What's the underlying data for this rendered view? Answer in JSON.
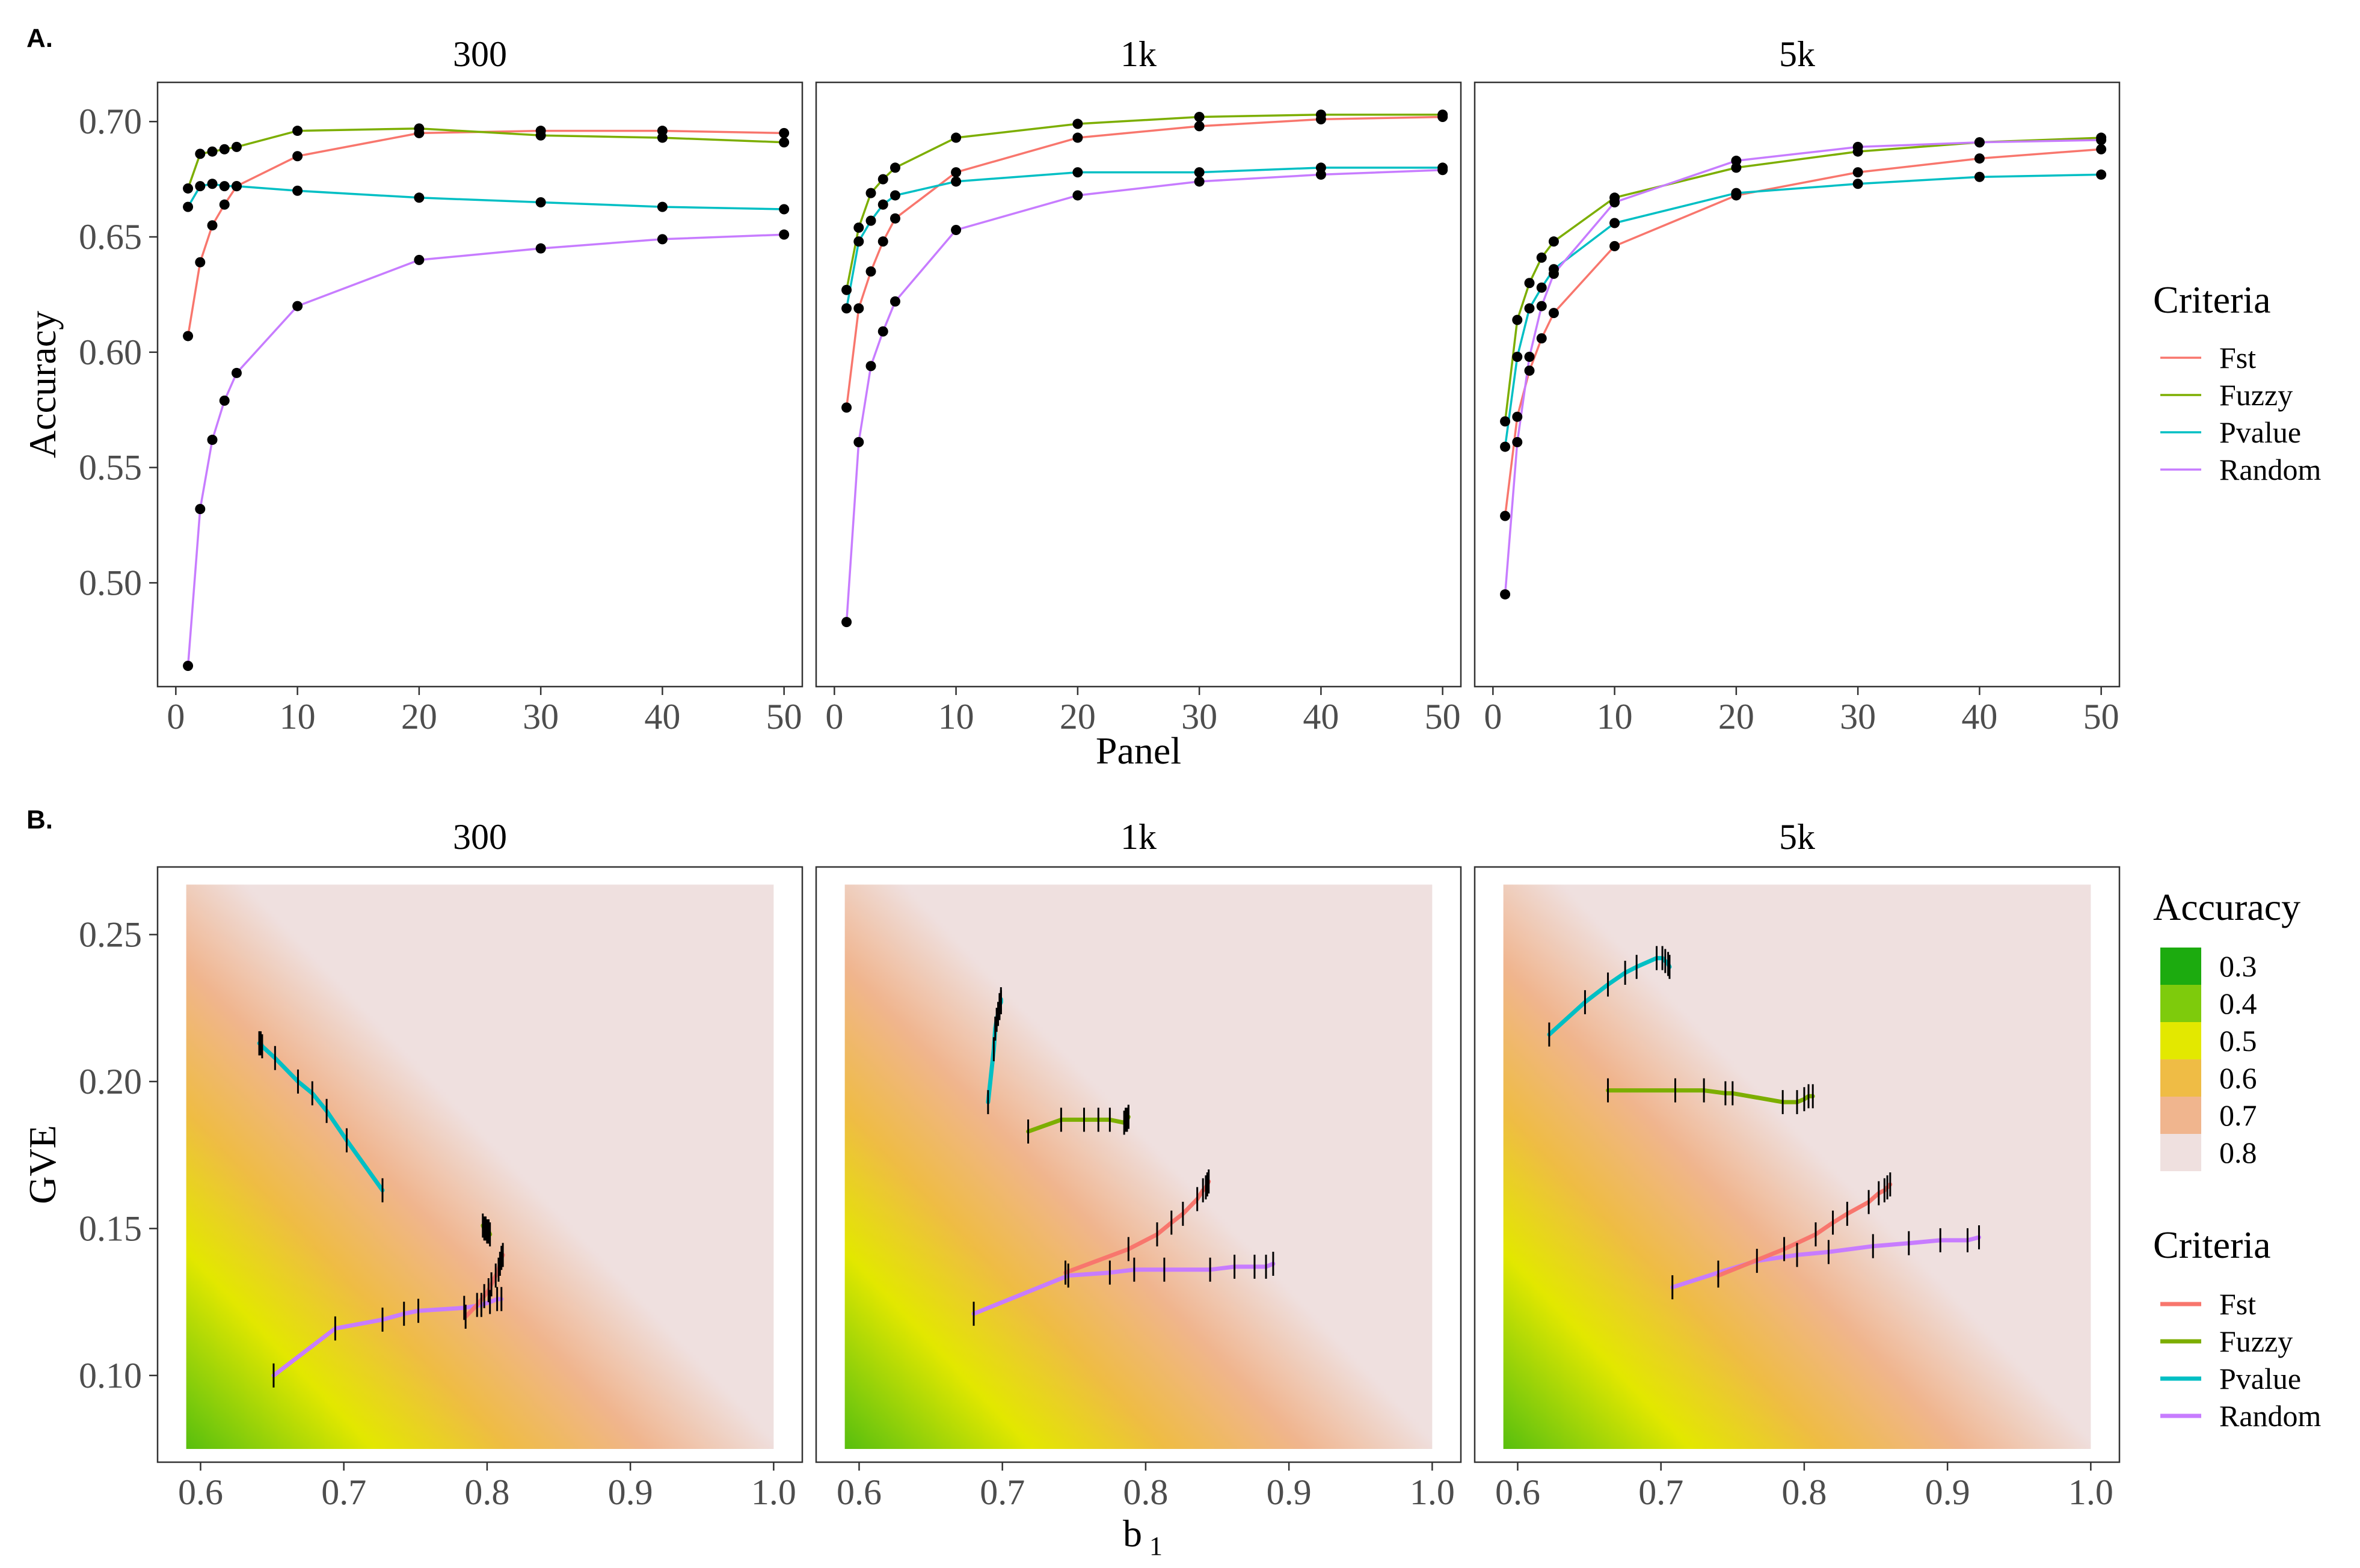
{
  "figure": {
    "panel_a_label": "A.",
    "panel_b_label": "B."
  },
  "facets": [
    "300",
    "1k",
    "5k"
  ],
  "colors": {
    "Fst": "#F8766D",
    "Fuzzy": "#7CAE00",
    "Pvalue": "#00BFC4",
    "Random": "#C77CFF"
  },
  "chart_data": [
    {
      "type": "line",
      "panel": "A.",
      "facets": [
        "300",
        "1k",
        "5k"
      ],
      "xlabel": "Panel",
      "ylabel": "Accuracy",
      "xlim": [
        -1.5,
        51.5
      ],
      "ylim": [
        0.455,
        0.717
      ],
      "xticks": [
        0,
        10,
        20,
        30,
        40,
        50
      ],
      "yticks": [
        0.5,
        0.55,
        0.6,
        0.65,
        0.7
      ],
      "grid": false,
      "legend": {
        "title": "Criteria",
        "position": "right",
        "entries": [
          "Fst",
          "Fuzzy",
          "Pvalue",
          "Random"
        ]
      },
      "x": [
        1,
        2,
        3,
        4,
        5,
        10,
        20,
        30,
        40,
        50
      ],
      "series": {
        "300": [
          {
            "name": "Fst",
            "values": [
              0.607,
              0.639,
              0.655,
              0.664,
              0.672,
              0.685,
              0.695,
              0.696,
              0.696,
              0.695
            ]
          },
          {
            "name": "Fuzzy",
            "values": [
              0.671,
              0.686,
              0.687,
              0.688,
              0.689,
              0.696,
              0.697,
              0.694,
              0.693,
              0.691
            ]
          },
          {
            "name": "Pvalue",
            "values": [
              0.663,
              0.672,
              0.673,
              0.672,
              0.672,
              0.67,
              0.667,
              0.665,
              0.663,
              0.662
            ]
          },
          {
            "name": "Random",
            "values": [
              0.464,
              0.532,
              0.562,
              0.579,
              0.591,
              0.62,
              0.64,
              0.645,
              0.649,
              0.651
            ]
          }
        ],
        "1k": [
          {
            "name": "Fst",
            "values": [
              0.576,
              0.619,
              0.635,
              0.648,
              0.658,
              0.678,
              0.693,
              0.698,
              0.701,
              0.702
            ]
          },
          {
            "name": "Fuzzy",
            "values": [
              0.627,
              0.654,
              0.669,
              0.675,
              0.68,
              0.693,
              0.699,
              0.702,
              0.703,
              0.703
            ]
          },
          {
            "name": "Pvalue",
            "values": [
              0.619,
              0.648,
              0.657,
              0.664,
              0.668,
              0.674,
              0.678,
              0.678,
              0.68,
              0.68
            ]
          },
          {
            "name": "Random",
            "values": [
              0.483,
              0.561,
              0.594,
              0.609,
              0.622,
              0.653,
              0.668,
              0.674,
              0.677,
              0.679
            ]
          }
        ],
        "5k": [
          {
            "name": "Fst",
            "values": [
              0.529,
              0.572,
              0.592,
              0.606,
              0.617,
              0.646,
              0.668,
              0.678,
              0.684,
              0.688
            ]
          },
          {
            "name": "Fuzzy",
            "values": [
              0.57,
              0.614,
              0.63,
              0.641,
              0.648,
              0.667,
              0.68,
              0.687,
              0.691,
              0.693
            ]
          },
          {
            "name": "Pvalue",
            "values": [
              0.559,
              0.598,
              0.619,
              0.628,
              0.636,
              0.656,
              0.669,
              0.673,
              0.676,
              0.677
            ]
          },
          {
            "name": "Random",
            "values": [
              0.495,
              0.561,
              0.598,
              0.62,
              0.634,
              0.665,
              0.683,
              0.689,
              0.691,
              0.692
            ]
          }
        ]
      }
    },
    {
      "type": "heatmap",
      "panel": "B.",
      "facets": [
        "300",
        "1k",
        "5k"
      ],
      "xlabel": "b",
      "xlabel_subscript": "1",
      "ylabel": "GVE",
      "xlim": [
        0.57,
        1.02
      ],
      "ylim": [
        0.0705,
        0.273
      ],
      "xticks": [
        0.6,
        0.7,
        0.8,
        0.9,
        1.0
      ],
      "yticks": [
        0.1,
        0.15,
        0.2,
        0.25
      ],
      "grid": false,
      "surface": {
        "b1_range": [
          0.59,
          1.0
        ],
        "gve_range": [
          0.075,
          0.267
        ]
      },
      "fill_legend": {
        "title": "Accuracy",
        "position": "right",
        "levels": [
          "0.3",
          "0.4",
          "0.5",
          "0.6",
          "0.7",
          "0.8"
        ],
        "colors": [
          "#1CAB0F",
          "#7ECB0C",
          "#E3E800",
          "#EFBC45",
          "#F0B58E",
          "#EFE0DF"
        ]
      },
      "line_legend": {
        "title": "Criteria",
        "position": "right",
        "entries": [
          "Fst",
          "Fuzzy",
          "Pvalue",
          "Random"
        ]
      },
      "series": {
        "300": [
          {
            "name": "Fst",
            "b1": [
              0.785,
              0.793,
              0.798,
              0.801,
              0.803,
              0.806,
              0.808,
              0.809,
              0.81,
              0.811
            ],
            "gve": [
              0.12,
              0.124,
              0.127,
              0.129,
              0.131,
              0.134,
              0.136,
              0.138,
              0.14,
              0.141
            ]
          },
          {
            "name": "Fuzzy",
            "b1": [
              0.797,
              0.798,
              0.799,
              0.8,
              0.8,
              0.801,
              0.801,
              0.801,
              0.801,
              0.802
            ],
            "gve": [
              0.151,
              0.15,
              0.15,
              0.149,
              0.149,
              0.149,
              0.149,
              0.149,
              0.149,
              0.148
            ]
          },
          {
            "name": "Pvalue",
            "b1": [
              0.727,
              0.702,
              0.688,
              0.678,
              0.668,
              0.652,
              0.643,
              0.642,
              0.641,
              0.641
            ],
            "gve": [
              0.163,
              0.18,
              0.19,
              0.196,
              0.2,
              0.208,
              0.212,
              0.213,
              0.213,
              0.213
            ]
          },
          {
            "name": "Random",
            "b1": [
              0.651,
              0.694,
              0.727,
              0.742,
              0.752,
              0.784,
              0.796,
              0.802,
              0.807,
              0.81
            ],
            "gve": [
              0.1,
              0.116,
              0.119,
              0.121,
              0.122,
              0.123,
              0.124,
              0.125,
              0.126,
              0.126
            ]
          }
        ],
        "1k": [
          {
            "name": "Fst",
            "b1": [
              0.744,
              0.788,
              0.808,
              0.818,
              0.826,
              0.836,
              0.84,
              0.842,
              0.843,
              0.844
            ],
            "gve": [
              0.135,
              0.143,
              0.148,
              0.152,
              0.155,
              0.16,
              0.163,
              0.164,
              0.165,
              0.166
            ]
          },
          {
            "name": "Fuzzy",
            "b1": [
              0.718,
              0.741,
              0.757,
              0.767,
              0.775,
              0.785,
              0.786,
              0.787,
              0.788,
              0.788
            ],
            "gve": [
              0.183,
              0.187,
              0.187,
              0.187,
              0.187,
              0.186,
              0.187,
              0.187,
              0.188,
              0.188
            ]
          },
          {
            "name": "Pvalue",
            "b1": [
              0.69,
              0.694,
              0.695,
              0.696,
              0.697,
              0.698,
              0.698,
              0.699,
              0.699,
              0.699
            ],
            "gve": [
              0.193,
              0.211,
              0.218,
              0.221,
              0.223,
              0.225,
              0.226,
              0.227,
              0.227,
              0.228
            ]
          },
          {
            "name": "Random",
            "b1": [
              0.68,
              0.746,
              0.775,
              0.792,
              0.813,
              0.845,
              0.862,
              0.876,
              0.884,
              0.889
            ],
            "gve": [
              0.121,
              0.134,
              0.135,
              0.136,
              0.136,
              0.136,
              0.137,
              0.137,
              0.137,
              0.138
            ]
          }
        ],
        "5k": [
          {
            "name": "Fst",
            "b1": [
              0.74,
              0.786,
              0.808,
              0.82,
              0.83,
              0.845,
              0.852,
              0.856,
              0.858,
              0.86
            ],
            "gve": [
              0.134,
              0.143,
              0.148,
              0.152,
              0.155,
              0.159,
              0.162,
              0.163,
              0.164,
              0.165
            ]
          },
          {
            "name": "Fuzzy",
            "b1": [
              0.663,
              0.71,
              0.73,
              0.745,
              0.75,
              0.785,
              0.795,
              0.8,
              0.803,
              0.806
            ],
            "gve": [
              0.197,
              0.197,
              0.197,
              0.196,
              0.196,
              0.193,
              0.193,
              0.194,
              0.195,
              0.195
            ]
          },
          {
            "name": "Pvalue",
            "b1": [
              0.622,
              0.647,
              0.663,
              0.675,
              0.683,
              0.697,
              0.701,
              0.703,
              0.705,
              0.706
            ],
            "gve": [
              0.216,
              0.227,
              0.233,
              0.237,
              0.239,
              0.242,
              0.242,
              0.241,
              0.24,
              0.239
            ]
          },
          {
            "name": "Random",
            "b1": [
              0.708,
              0.74,
              0.767,
              0.795,
              0.817,
              0.848,
              0.873,
              0.895,
              0.914,
              0.922
            ],
            "gve": [
              0.13,
              0.135,
              0.139,
              0.141,
              0.142,
              0.144,
              0.145,
              0.146,
              0.146,
              0.147
            ]
          }
        ]
      }
    }
  ]
}
